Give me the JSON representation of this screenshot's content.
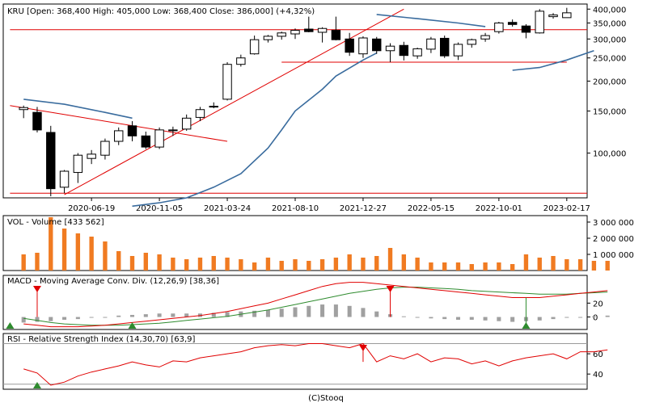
{
  "header": {
    "title": "KRU [Open: 368,400  High: 405,000  Low: 368,400  Close: 386,000] (+4,32%)"
  },
  "footer": {
    "copyright": "(C)Stooq"
  },
  "colors": {
    "up": "#ffffff",
    "down": "#000000",
    "trend": "#e00000",
    "ma": "#3a6c9e",
    "volume": "#f07b22",
    "macd_signal": "#2e8b2e",
    "histogram": "#a0a0a0",
    "marker_up": "#2e8b2e",
    "marker_down": "#e00000"
  },
  "chart_data": [
    {
      "type": "candlestick",
      "name": "price",
      "title": "KRU [Open: 368,400  High: 405,000  Low: 368,400  Close: 386,000] (+4,32%)",
      "y_scale": "log",
      "ylim": [
        65000,
        420000
      ],
      "y_ticks": [
        {
          "v": 400000,
          "label": "400,000"
        },
        {
          "v": 350000,
          "label": "350,000"
        },
        {
          "v": 300000,
          "label": "300,000"
        },
        {
          "v": 250000,
          "label": "250,000"
        },
        {
          "v": 200000,
          "label": "200,000"
        },
        {
          "v": 150000,
          "label": "150,000"
        },
        {
          "v": 100000,
          "label": "100,000"
        }
      ],
      "x_labels": [
        {
          "i": 5,
          "label": "2020-06-19"
        },
        {
          "i": 10,
          "label": "2020-11-05"
        },
        {
          "i": 15,
          "label": "2021-03-24"
        },
        {
          "i": 20,
          "label": "2021-08-10"
        },
        {
          "i": 25,
          "label": "2021-12-27"
        },
        {
          "i": 30,
          "label": "2022-05-15"
        },
        {
          "i": 35,
          "label": "2022-10-01"
        },
        {
          "i": 40,
          "label": "2023-02-17"
        }
      ],
      "candles": [
        {
          "o": 152000,
          "h": 158000,
          "l": 140000,
          "c": 155000
        },
        {
          "o": 148000,
          "h": 156000,
          "l": 122000,
          "c": 125000
        },
        {
          "o": 122000,
          "h": 130000,
          "l": 66000,
          "c": 71000
        },
        {
          "o": 72000,
          "h": 85000,
          "l": 68000,
          "c": 84000
        },
        {
          "o": 83000,
          "h": 100000,
          "l": 75000,
          "c": 98000
        },
        {
          "o": 95000,
          "h": 103000,
          "l": 90000,
          "c": 99000
        },
        {
          "o": 98000,
          "h": 115000,
          "l": 94000,
          "c": 112000
        },
        {
          "o": 112000,
          "h": 128000,
          "l": 108000,
          "c": 124000
        },
        {
          "o": 130000,
          "h": 136000,
          "l": 112000,
          "c": 118000
        },
        {
          "o": 118000,
          "h": 123000,
          "l": 104000,
          "c": 106000
        },
        {
          "o": 106000,
          "h": 128000,
          "l": 104000,
          "c": 125000
        },
        {
          "o": 124000,
          "h": 129000,
          "l": 118000,
          "c": 125000
        },
        {
          "o": 126000,
          "h": 145000,
          "l": 124000,
          "c": 140000
        },
        {
          "o": 141000,
          "h": 156000,
          "l": 136000,
          "c": 152000
        },
        {
          "o": 156000,
          "h": 163000,
          "l": 154000,
          "c": 157000
        },
        {
          "o": 168000,
          "h": 240000,
          "l": 166000,
          "c": 235000
        },
        {
          "o": 235000,
          "h": 258000,
          "l": 230000,
          "c": 250000
        },
        {
          "o": 260000,
          "h": 310000,
          "l": 258000,
          "c": 298000
        },
        {
          "o": 298000,
          "h": 312000,
          "l": 290000,
          "c": 308000
        },
        {
          "o": 308000,
          "h": 322000,
          "l": 298000,
          "c": 318000
        },
        {
          "o": 315000,
          "h": 332000,
          "l": 300000,
          "c": 326000
        },
        {
          "o": 330000,
          "h": 372000,
          "l": 320000,
          "c": 322000
        },
        {
          "o": 320000,
          "h": 336000,
          "l": 290000,
          "c": 332000
        },
        {
          "o": 326000,
          "h": 372000,
          "l": 296000,
          "c": 298000
        },
        {
          "o": 300000,
          "h": 318000,
          "l": 255000,
          "c": 264000
        },
        {
          "o": 260000,
          "h": 308000,
          "l": 250000,
          "c": 303000
        },
        {
          "o": 300000,
          "h": 306000,
          "l": 260000,
          "c": 268000
        },
        {
          "o": 268000,
          "h": 288000,
          "l": 240000,
          "c": 280000
        },
        {
          "o": 282000,
          "h": 292000,
          "l": 244000,
          "c": 256000
        },
        {
          "o": 255000,
          "h": 276000,
          "l": 248000,
          "c": 273000
        },
        {
          "o": 272000,
          "h": 306000,
          "l": 262000,
          "c": 300000
        },
        {
          "o": 302000,
          "h": 310000,
          "l": 250000,
          "c": 255000
        },
        {
          "o": 255000,
          "h": 290000,
          "l": 245000,
          "c": 285000
        },
        {
          "o": 285000,
          "h": 301000,
          "l": 276000,
          "c": 298000
        },
        {
          "o": 300000,
          "h": 318000,
          "l": 292000,
          "c": 310000
        },
        {
          "o": 322000,
          "h": 354000,
          "l": 316000,
          "c": 350000
        },
        {
          "o": 352000,
          "h": 362000,
          "l": 338000,
          "c": 345000
        },
        {
          "o": 340000,
          "h": 346000,
          "l": 302000,
          "c": 320000
        },
        {
          "o": 318000,
          "h": 400000,
          "l": 316000,
          "c": 392000
        },
        {
          "o": 372000,
          "h": 385000,
          "l": 365000,
          "c": 378000
        },
        {
          "o": 368400,
          "h": 405000,
          "l": 368400,
          "c": 386000
        }
      ],
      "moving_averages": [
        {
          "name": "ma_upper_left",
          "values": [
            {
              "i": 0,
              "v": 168000
            },
            {
              "i": 3,
              "v": 160000
            },
            {
              "i": 6,
              "v": 148000
            },
            {
              "i": 8,
              "v": 140000
            }
          ]
        },
        {
          "name": "ma_long",
          "values": [
            {
              "i": 8,
              "v": 60000
            },
            {
              "i": 10,
              "v": 62000
            },
            {
              "i": 12,
              "v": 65000
            },
            {
              "i": 14,
              "v": 72000
            },
            {
              "i": 16,
              "v": 82000
            },
            {
              "i": 18,
              "v": 105000
            },
            {
              "i": 19,
              "v": 125000
            },
            {
              "i": 20,
              "v": 150000
            },
            {
              "i": 22,
              "v": 185000
            },
            {
              "i": 23,
              "v": 210000
            },
            {
              "i": 25,
              "v": 245000
            },
            {
              "i": 26,
              "v": 262000
            }
          ]
        },
        {
          "name": "ma_mid",
          "values": [
            {
              "i": 26,
              "v": 380000
            },
            {
              "i": 29,
              "v": 365000
            },
            {
              "i": 32,
              "v": 350000
            },
            {
              "i": 34,
              "v": 338000
            }
          ]
        },
        {
          "name": "ma_right",
          "values": [
            {
              "i": 36,
              "v": 222000
            },
            {
              "i": 38,
              "v": 228000
            },
            {
              "i": 40,
              "v": 245000
            },
            {
              "i": 42,
              "v": 268000
            }
          ]
        }
      ],
      "trendlines": [
        {
          "name": "support-low",
          "x1": -1,
          "y1": 68000,
          "x2": 44,
          "y2": 68000
        },
        {
          "name": "resistance-high",
          "x1": -1,
          "y1": 328000,
          "x2": 44,
          "y2": 328000
        },
        {
          "name": "support-mid",
          "x1": 19,
          "y1": 240000,
          "x2": 40,
          "y2": 240000
        },
        {
          "name": "diag-down",
          "x1": -1,
          "y1": 158000,
          "x2": 15,
          "y2": 112000
        },
        {
          "name": "diag-up",
          "x1": 3,
          "y1": 67000,
          "x2": 28,
          "y2": 400000
        }
      ]
    },
    {
      "type": "bar",
      "name": "volume",
      "title": "VOL - Volume [433 562]",
      "ylim": [
        0,
        3400000
      ],
      "y_ticks": [
        {
          "v": 3000000,
          "label": "3 000 000"
        },
        {
          "v": 2000000,
          "label": "2 000 000"
        },
        {
          "v": 1000000,
          "label": "1 000 000"
        }
      ],
      "values": [
        1000000,
        1100000,
        3300000,
        2600000,
        2300000,
        2100000,
        1800000,
        1200000,
        900000,
        1100000,
        1000000,
        800000,
        700000,
        800000,
        900000,
        800000,
        700000,
        500000,
        800000,
        600000,
        700000,
        600000,
        700000,
        800000,
        1000000,
        800000,
        900000,
        1400000,
        1000000,
        800000,
        500000,
        500000,
        500000,
        400000,
        500000,
        500000,
        400000,
        1000000,
        800000,
        900000,
        700000,
        700000,
        600000,
        600000
      ]
    },
    {
      "type": "line",
      "name": "macd",
      "title": "MACD - Moving Average Conv. Div. (12,26,9) [38,36]",
      "ylim": [
        -18,
        60
      ],
      "y_ticks": [
        {
          "v": 20,
          "label": "20"
        },
        {
          "v": 0,
          "label": "0"
        }
      ],
      "macd": [
        -10,
        -12,
        -14,
        -14,
        -14,
        -13,
        -12,
        -10,
        -8,
        -6,
        -4,
        -2,
        0,
        2,
        5,
        8,
        12,
        16,
        20,
        26,
        32,
        38,
        44,
        48,
        50,
        50,
        48,
        46,
        44,
        42,
        40,
        38,
        36,
        34,
        32,
        30,
        28,
        28,
        28,
        30,
        32,
        34,
        36,
        38
      ],
      "signal": [
        -2,
        -5,
        -8,
        -10,
        -11,
        -12,
        -12,
        -12,
        -11,
        -10,
        -9,
        -7,
        -5,
        -3,
        -1,
        1,
        4,
        7,
        10,
        14,
        18,
        22,
        26,
        30,
        34,
        37,
        40,
        42,
        43,
        43,
        42,
        41,
        40,
        38,
        37,
        36,
        35,
        34,
        33,
        33,
        33,
        34,
        35,
        36
      ],
      "histogram": [
        -8,
        -7,
        -6,
        -4,
        -3,
        -1,
        0,
        2,
        3,
        4,
        5,
        5,
        5,
        5,
        6,
        7,
        8,
        9,
        10,
        12,
        14,
        16,
        18,
        18,
        16,
        13,
        8,
        4,
        1,
        -1,
        -2,
        -3,
        -4,
        -4,
        -5,
        -6,
        -7,
        -6,
        -5,
        -3,
        -1,
        0,
        1,
        2
      ],
      "events": [
        {
          "i": -1,
          "type": "buy"
        },
        {
          "i": 1,
          "type": "sell"
        },
        {
          "i": 8,
          "type": "buy"
        },
        {
          "i": 27,
          "type": "sell"
        },
        {
          "i": 37,
          "type": "buy"
        }
      ]
    },
    {
      "type": "line",
      "name": "rsi",
      "title": "RSI - Relative Strength Index (14,30,70) [63,9]",
      "ylim": [
        25,
        80
      ],
      "y_ticks": [
        {
          "v": 60,
          "label": "60"
        },
        {
          "v": 40,
          "label": "40"
        }
      ],
      "reference_levels": [
        30,
        70
      ],
      "values": [
        45,
        41,
        29,
        32,
        38,
        42,
        45,
        48,
        52,
        49,
        47,
        53,
        52,
        56,
        58,
        60,
        62,
        66,
        68,
        69,
        68,
        70,
        70,
        68,
        66,
        70,
        52,
        58,
        55,
        60,
        52,
        56,
        55,
        50,
        53,
        48,
        53,
        56,
        58,
        60,
        55,
        62,
        62,
        63.9
      ],
      "events": [
        {
          "i": 1,
          "type": "buy"
        },
        {
          "i": 25,
          "type": "sell"
        }
      ]
    }
  ]
}
